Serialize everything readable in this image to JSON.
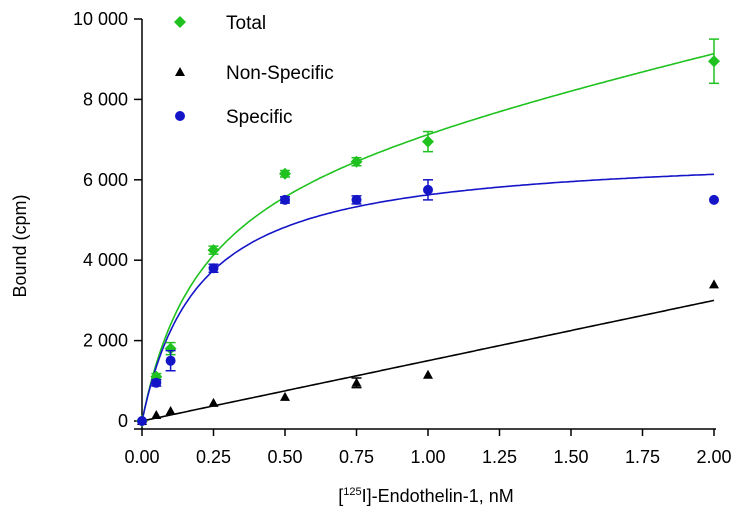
{
  "chart_data": {
    "type": "scatter",
    "title": "",
    "xlabel_parts": [
      "[",
      "125",
      "I]-Endothelin-1, nM"
    ],
    "ylabel": "Bound (cpm)",
    "x_ticks": [
      "0.00",
      "0.25",
      "0.50",
      "0.75",
      "1.00",
      "1.25",
      "1.50",
      "1.75",
      "2.00"
    ],
    "y_ticks": [
      "0",
      "2 000",
      "4 000",
      "6 000",
      "8 000",
      "10 000"
    ],
    "xlim": [
      0,
      2.1
    ],
    "ylim": [
      0,
      10000
    ],
    "legend_position": "top-left",
    "series": [
      {
        "name": "Total",
        "color": "#1fc21f",
        "marker": "diamond",
        "x": [
          0,
          0.05,
          0.1,
          0.25,
          0.5,
          0.75,
          1.0,
          2.0
        ],
        "y": [
          0,
          1100,
          1800,
          4250,
          6150,
          6450,
          6950,
          8950
        ],
        "err": [
          0,
          80,
          150,
          100,
          80,
          100,
          250,
          550
        ],
        "fit": {
          "model": "one-site-total",
          "Bmax": 6750,
          "Kd": 0.2,
          "NS": 1500
        }
      },
      {
        "name": "Non-Specific",
        "color": "#000000",
        "marker": "triangle",
        "x": [
          0,
          0.05,
          0.1,
          0.25,
          0.5,
          0.75,
          1.0,
          2.0
        ],
        "y": [
          0,
          150,
          250,
          450,
          600,
          950,
          1150,
          3400
        ],
        "err": [
          0,
          0,
          0,
          0,
          0,
          120,
          0,
          0
        ],
        "fit": {
          "model": "linear",
          "slope": 1500,
          "intercept": 0
        }
      },
      {
        "name": "Specific",
        "color": "#1515c8",
        "marker": "circle",
        "x": [
          0,
          0.05,
          0.1,
          0.25,
          0.5,
          0.75,
          1.0,
          2.0
        ],
        "y": [
          0,
          950,
          1500,
          3800,
          5500,
          5500,
          5750,
          5500
        ],
        "err": [
          0,
          80,
          250,
          100,
          80,
          100,
          250,
          0
        ],
        "fit": {
          "model": "one-site",
          "Bmax": 6750,
          "Kd": 0.2
        }
      }
    ]
  }
}
